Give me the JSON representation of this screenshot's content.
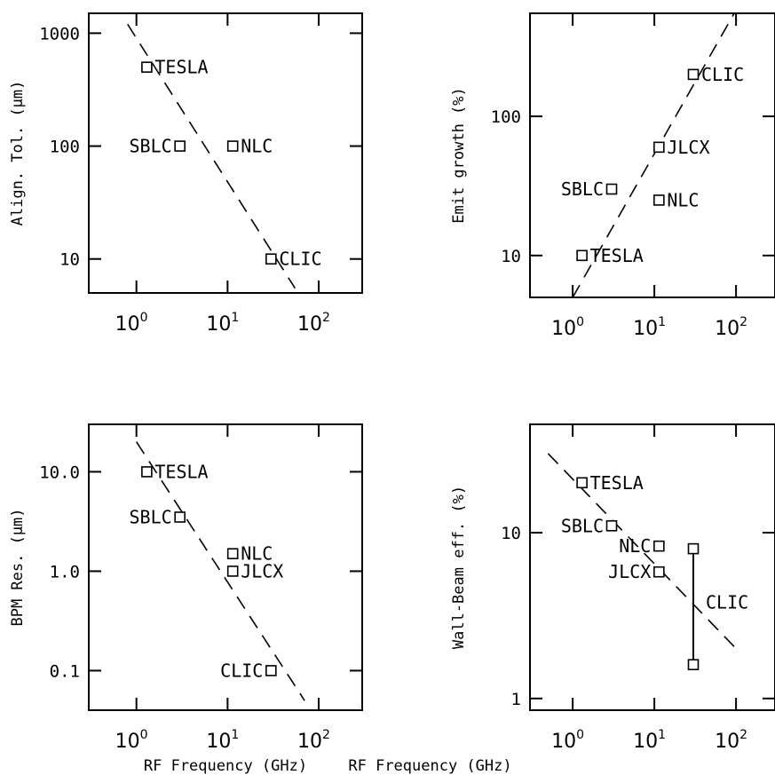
{
  "chart_data": [
    {
      "type": "scatter",
      "xscale": "log",
      "yscale": "log",
      "xlim": [
        0.3,
        300
      ],
      "ylim": [
        5,
        1500
      ],
      "ylabel": "Align. Tol. (µm)",
      "xlabel": "",
      "yticks": [
        {
          "value": 10,
          "label": "10"
        },
        {
          "value": 100,
          "label": "100"
        },
        {
          "value": 1000,
          "label": "1000"
        }
      ],
      "xticks": [
        {
          "value": 1,
          "base": "10",
          "exp": "0"
        },
        {
          "value": 10,
          "base": "10",
          "exp": "1"
        },
        {
          "value": 100,
          "base": "10",
          "exp": "2"
        }
      ],
      "points": [
        {
          "name": "TESLA",
          "x": 1.3,
          "y": 500,
          "label_side": "right"
        },
        {
          "name": "SBLC",
          "x": 3.0,
          "y": 100,
          "label_side": "left"
        },
        {
          "name": "NLC",
          "x": 11.4,
          "y": 100,
          "label_side": "right"
        },
        {
          "name": "CLIC",
          "x": 30,
          "y": 10,
          "label_side": "right"
        }
      ],
      "trend": {
        "x": [
          0.8,
          55
        ],
        "y": [
          1200,
          5.5
        ]
      }
    },
    {
      "type": "scatter",
      "xscale": "log",
      "yscale": "log",
      "xlim": [
        0.3,
        300
      ],
      "ylim": [
        5,
        550
      ],
      "ylabel": "Emit growth (%)",
      "xlabel": "",
      "yticks": [
        {
          "value": 10,
          "label": "10"
        },
        {
          "value": 100,
          "label": "100"
        }
      ],
      "xticks": [
        {
          "value": 1,
          "base": "10",
          "exp": "0"
        },
        {
          "value": 10,
          "base": "10",
          "exp": "1"
        },
        {
          "value": 100,
          "base": "10",
          "exp": "2"
        }
      ],
      "points": [
        {
          "name": "CLIC",
          "x": 30,
          "y": 200,
          "label_side": "right"
        },
        {
          "name": "JLCX",
          "x": 11.4,
          "y": 60,
          "label_side": "right"
        },
        {
          "name": "SBLC",
          "x": 3.0,
          "y": 30,
          "label_side": "left"
        },
        {
          "name": "NLC",
          "x": 11.4,
          "y": 25,
          "label_side": "right"
        },
        {
          "name": "TESLA",
          "x": 1.3,
          "y": 10,
          "label_side": "right"
        }
      ],
      "trend": {
        "x": [
          1.0,
          95
        ],
        "y": [
          5,
          550
        ]
      }
    },
    {
      "type": "scatter",
      "xscale": "log",
      "yscale": "log",
      "xlim": [
        0.3,
        300
      ],
      "ylim": [
        0.04,
        30
      ],
      "ylabel": "BPM Res. (µm)",
      "xlabel": "RF Frequency (GHz)",
      "yticks": [
        {
          "value": 0.1,
          "label": "0.1"
        },
        {
          "value": 1,
          "label": "1.0"
        },
        {
          "value": 10,
          "label": "10.0"
        }
      ],
      "xticks": [
        {
          "value": 1,
          "base": "10",
          "exp": "0"
        },
        {
          "value": 10,
          "base": "10",
          "exp": "1"
        },
        {
          "value": 100,
          "base": "10",
          "exp": "2"
        }
      ],
      "points": [
        {
          "name": "TESLA",
          "x": 1.3,
          "y": 10,
          "label_side": "right"
        },
        {
          "name": "SBLC",
          "x": 3.0,
          "y": 3.5,
          "label_side": "left"
        },
        {
          "name": "NLC",
          "x": 11.4,
          "y": 1.5,
          "label_side": "right"
        },
        {
          "name": "JLCX",
          "x": 11.4,
          "y": 1.0,
          "label_side": "right"
        },
        {
          "name": "CLIC",
          "x": 30,
          "y": 0.1,
          "label_side": "left"
        }
      ],
      "trend": {
        "x": [
          1.0,
          70
        ],
        "y": [
          20,
          0.05
        ]
      }
    },
    {
      "type": "scatter",
      "xscale": "log",
      "yscale": "log",
      "xlim": [
        0.3,
        300
      ],
      "ylim": [
        0.85,
        45
      ],
      "ylabel": "Wall-Beam eff. (%)",
      "xlabel": "RF Frequency (GHz)",
      "yticks": [
        {
          "value": 1,
          "label": "1"
        },
        {
          "value": 10,
          "label": "10"
        }
      ],
      "xticks": [
        {
          "value": 1,
          "base": "10",
          "exp": "0"
        },
        {
          "value": 10,
          "base": "10",
          "exp": "1"
        },
        {
          "value": 100,
          "base": "10",
          "exp": "2"
        }
      ],
      "points": [
        {
          "name": "TESLA",
          "x": 1.3,
          "y": 20,
          "label_side": "right"
        },
        {
          "name": "SBLC",
          "x": 3.0,
          "y": 11,
          "label_side": "left"
        },
        {
          "name": "NLC",
          "x": 11.4,
          "y": 8.3,
          "label_side": "left"
        },
        {
          "name": "JLCX",
          "x": 11.4,
          "y": 5.8,
          "label_side": "left"
        },
        {
          "name": "CLIC",
          "x": 30,
          "y": 8,
          "label_side": "none"
        },
        {
          "name": "CLIC-low",
          "x": 30,
          "y": 1.6,
          "label_side": "none"
        }
      ],
      "range": {
        "name": "CLIC",
        "x": 30,
        "y": [
          1.6,
          8
        ],
        "label_y": 3.8
      },
      "trend": {
        "x": [
          0.5,
          100
        ],
        "y": [
          30,
          2
        ]
      }
    }
  ]
}
